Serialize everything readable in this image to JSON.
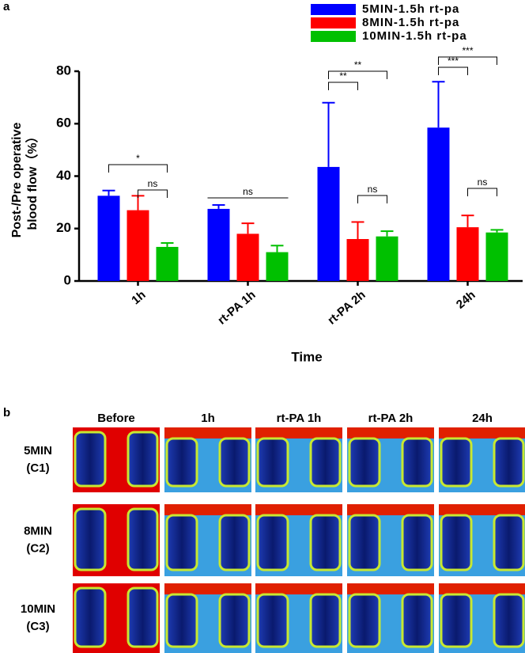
{
  "chart_data": {
    "type": "bar",
    "panel_label": "a",
    "categories": [
      "1h",
      "rt-PA 1h",
      "rt-PA 2h",
      "24h"
    ],
    "series": [
      {
        "name": "5MIN-1.5h rt-pa",
        "color": "#0000ff",
        "values": [
          32.5,
          27.5,
          43.5,
          58.5
        ],
        "errors": [
          2,
          1.5,
          24.5,
          17.5
        ]
      },
      {
        "name": "8MIN-1.5h rt-pa",
        "color": "#ff0000",
        "values": [
          27,
          18,
          16,
          20.5
        ],
        "errors": [
          5.5,
          4,
          6.5,
          4.5
        ]
      },
      {
        "name": "10MIN-1.5h rt-pa",
        "color": "#00c000",
        "values": [
          13,
          11,
          17,
          18.5
        ],
        "errors": [
          1.5,
          2.5,
          2,
          1
        ]
      }
    ],
    "ylim": [
      0,
      80
    ],
    "yticks": [
      0,
      20,
      40,
      60,
      80
    ],
    "y_label": [
      "Post-/Pre operative",
      "blood flow（%）"
    ],
    "x_label": "Time",
    "annotations": [
      "*",
      "ns",
      "ns",
      "**",
      "**",
      "ns",
      "***",
      "***",
      "ns"
    ]
  },
  "panel_b": {
    "label": "b",
    "columns": [
      "Before",
      "1h",
      "rt-PA 1h",
      "rt-PA 2h",
      "24h"
    ],
    "rows": [
      [
        "5MIN",
        "(C1)"
      ],
      [
        "8MIN",
        "(C2)"
      ],
      [
        "10MIN",
        "(C3)"
      ]
    ]
  }
}
